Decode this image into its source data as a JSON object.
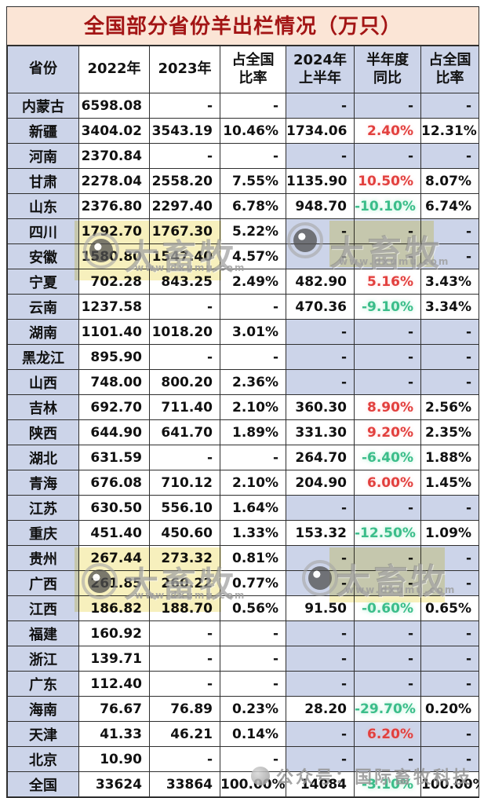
{
  "chart_data": {
    "type": "table",
    "title": "全国部分省份羊出栏情况（万只）",
    "columns": [
      "省份",
      "2022年",
      "2023年",
      "占全国\n比率",
      "2024年\n上半年",
      "半年度\n同比",
      "占全国\n比率"
    ],
    "rows": [
      {
        "province": "内蒙古",
        "y2022": "6598.08",
        "y2023": "-",
        "share2023": "-",
        "h1_2024": "-",
        "yoy": "-",
        "share2024": "-",
        "yoy_color": "none",
        "right_filled": false
      },
      {
        "province": "新疆",
        "y2022": "3404.02",
        "y2023": "3543.19",
        "share2023": "10.46%",
        "h1_2024": "1734.06",
        "yoy": "2.40%",
        "share2024": "12.31%",
        "yoy_color": "red",
        "right_filled": true
      },
      {
        "province": "河南",
        "y2022": "2370.84",
        "y2023": "-",
        "share2023": "-",
        "h1_2024": "-",
        "yoy": "-",
        "share2024": "-",
        "yoy_color": "none",
        "right_filled": false
      },
      {
        "province": "甘肃",
        "y2022": "2278.04",
        "y2023": "2558.20",
        "share2023": "7.55%",
        "h1_2024": "1135.90",
        "yoy": "10.50%",
        "share2024": "8.07%",
        "yoy_color": "red",
        "right_filled": true
      },
      {
        "province": "山东",
        "y2022": "2376.80",
        "y2023": "2297.40",
        "share2023": "6.78%",
        "h1_2024": "948.70",
        "yoy": "-10.10%",
        "share2024": "6.74%",
        "yoy_color": "green",
        "right_filled": true
      },
      {
        "province": "四川",
        "y2022": "1792.70",
        "y2023": "1767.30",
        "share2023": "5.22%",
        "h1_2024": "-",
        "yoy": "-",
        "share2024": "-",
        "yoy_color": "none",
        "right_filled": false
      },
      {
        "province": "安徽",
        "y2022": "1580.80",
        "y2023": "1547.40",
        "share2023": "4.57%",
        "h1_2024": "-",
        "yoy": "-",
        "share2024": "-",
        "yoy_color": "none",
        "right_filled": false
      },
      {
        "province": "宁夏",
        "y2022": "702.28",
        "y2023": "843.25",
        "share2023": "2.49%",
        "h1_2024": "482.90",
        "yoy": "5.16%",
        "share2024": "3.43%",
        "yoy_color": "red",
        "right_filled": true
      },
      {
        "province": "云南",
        "y2022": "1237.58",
        "y2023": "-",
        "share2023": "-",
        "h1_2024": "470.36",
        "yoy": "-9.10%",
        "share2024": "3.34%",
        "yoy_color": "green",
        "right_filled": true
      },
      {
        "province": "湖南",
        "y2022": "1101.40",
        "y2023": "1018.20",
        "share2023": "3.01%",
        "h1_2024": "-",
        "yoy": "-",
        "share2024": "-",
        "yoy_color": "none",
        "right_filled": false
      },
      {
        "province": "黑龙江",
        "y2022": "895.90",
        "y2023": "-",
        "share2023": "-",
        "h1_2024": "-",
        "yoy": "-",
        "share2024": "-",
        "yoy_color": "none",
        "right_filled": false
      },
      {
        "province": "山西",
        "y2022": "748.00",
        "y2023": "800.20",
        "share2023": "2.36%",
        "h1_2024": "-",
        "yoy": "-",
        "share2024": "-",
        "yoy_color": "none",
        "right_filled": false
      },
      {
        "province": "吉林",
        "y2022": "692.70",
        "y2023": "711.40",
        "share2023": "2.10%",
        "h1_2024": "360.30",
        "yoy": "8.90%",
        "share2024": "2.56%",
        "yoy_color": "red",
        "right_filled": true
      },
      {
        "province": "陕西",
        "y2022": "644.90",
        "y2023": "641.70",
        "share2023": "1.89%",
        "h1_2024": "331.30",
        "yoy": "9.20%",
        "share2024": "2.35%",
        "yoy_color": "red",
        "right_filled": true
      },
      {
        "province": "湖北",
        "y2022": "631.59",
        "y2023": "-",
        "share2023": "-",
        "h1_2024": "264.70",
        "yoy": "-6.40%",
        "share2024": "1.88%",
        "yoy_color": "green",
        "right_filled": true
      },
      {
        "province": "青海",
        "y2022": "676.08",
        "y2023": "710.12",
        "share2023": "2.10%",
        "h1_2024": "204.90",
        "yoy": "6.00%",
        "share2024": "1.45%",
        "yoy_color": "red",
        "right_filled": true
      },
      {
        "province": "江苏",
        "y2022": "630.50",
        "y2023": "556.10",
        "share2023": "1.64%",
        "h1_2024": "-",
        "yoy": "-",
        "share2024": "-",
        "yoy_color": "none",
        "right_filled": false
      },
      {
        "province": "重庆",
        "y2022": "451.40",
        "y2023": "450.60",
        "share2023": "1.33%",
        "h1_2024": "153.32",
        "yoy": "-12.50%",
        "share2024": "1.09%",
        "yoy_color": "green",
        "right_filled": true
      },
      {
        "province": "贵州",
        "y2022": "267.44",
        "y2023": "273.32",
        "share2023": "0.81%",
        "h1_2024": "-",
        "yoy": "-",
        "share2024": "-",
        "yoy_color": "none",
        "right_filled": false
      },
      {
        "province": "广西",
        "y2022": "261.85",
        "y2023": "260.22",
        "share2023": "0.77%",
        "h1_2024": "-",
        "yoy": "-",
        "share2024": "-",
        "yoy_color": "none",
        "right_filled": false
      },
      {
        "province": "江西",
        "y2022": "186.82",
        "y2023": "188.70",
        "share2023": "0.56%",
        "h1_2024": "91.50",
        "yoy": "-0.60%",
        "share2024": "0.65%",
        "yoy_color": "green",
        "right_filled": true
      },
      {
        "province": "福建",
        "y2022": "160.92",
        "y2023": "-",
        "share2023": "-",
        "h1_2024": "-",
        "yoy": "-",
        "share2024": "-",
        "yoy_color": "none",
        "right_filled": false
      },
      {
        "province": "浙江",
        "y2022": "139.71",
        "y2023": "-",
        "share2023": "-",
        "h1_2024": "-",
        "yoy": "-",
        "share2024": "-",
        "yoy_color": "none",
        "right_filled": false
      },
      {
        "province": "广东",
        "y2022": "112.40",
        "y2023": "-",
        "share2023": "-",
        "h1_2024": "-",
        "yoy": "-",
        "share2024": "-",
        "yoy_color": "none",
        "right_filled": false
      },
      {
        "province": "海南",
        "y2022": "76.67",
        "y2023": "76.89",
        "share2023": "0.23%",
        "h1_2024": "28.20",
        "yoy": "-29.70%",
        "share2024": "0.20%",
        "yoy_color": "green",
        "right_filled": true
      },
      {
        "province": "天津",
        "y2022": "41.33",
        "y2023": "46.21",
        "share2023": "0.14%",
        "h1_2024": "-",
        "yoy": "6.20%",
        "share2024": "-",
        "yoy_color": "red",
        "right_filled": false
      },
      {
        "province": "北京",
        "y2022": "10.90",
        "y2023": "-",
        "share2023": "-",
        "h1_2024": "-",
        "yoy": "-",
        "share2024": "-",
        "yoy_color": "none",
        "right_filled": false
      },
      {
        "province": "全国",
        "y2022": "33624",
        "y2023": "33864",
        "share2023": "100.00%",
        "h1_2024": "14084",
        "yoy": "-3.10%",
        "share2024": "100.00%",
        "yoy_color": "green",
        "right_filled": true
      }
    ]
  },
  "watermark": {
    "brand": "大畜牧",
    "url": "www.dxumu.com",
    "footer": "公众号：国际畜牧科技"
  },
  "colors": {
    "title_text": "#a31515",
    "title_bg": "#fbe5d6",
    "header_bg": "#ccd4e9",
    "positive_red": "#e2403e",
    "negative_green": "#3bbd8a",
    "border": "#2f2f2f",
    "watermark_yellow": "#f2e794"
  }
}
